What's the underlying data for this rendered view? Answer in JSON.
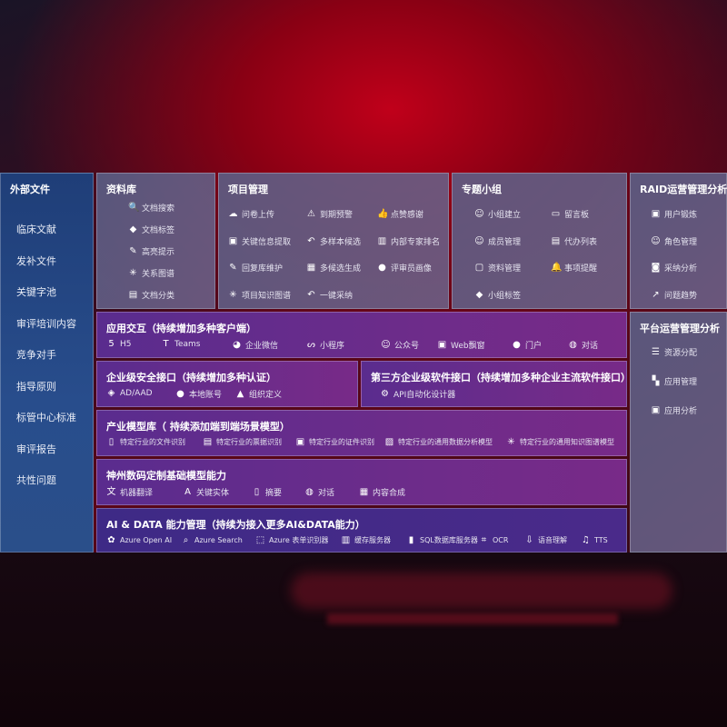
{
  "sidebar": {
    "title": "外部文件",
    "items": [
      "临床文献",
      "发补文件",
      "关键字池",
      "审评培训内容",
      "竞争对手",
      "指导原则",
      "标管中心标准",
      "审评报告",
      "共性问题"
    ]
  },
  "panels": {
    "library": {
      "title": "资料库",
      "items": [
        {
          "label": "文档搜索",
          "icon": "doc-search-icon"
        },
        {
          "label": "文档标签",
          "icon": "tag-icon"
        },
        {
          "label": "高亮提示",
          "icon": "pen-icon"
        },
        {
          "label": "关系图谱",
          "icon": "graph-icon"
        },
        {
          "label": "文档分类",
          "icon": "doc-list-icon"
        }
      ]
    },
    "project": {
      "title": "项目管理",
      "items": [
        {
          "label": "问卷上传",
          "icon": "cloud-upload-icon"
        },
        {
          "label": "到期预警",
          "icon": "alarm-icon"
        },
        {
          "label": "点赞感谢",
          "icon": "thumbs-up-icon"
        },
        {
          "label": "关键信息提取",
          "icon": "window-icon"
        },
        {
          "label": "多样本候选",
          "icon": "reply-icon"
        },
        {
          "label": "内部专家排名",
          "icon": "ranking-icon"
        },
        {
          "label": "回复库维护",
          "icon": "edit-icon"
        },
        {
          "label": "多候选生成",
          "icon": "puzzle-icon"
        },
        {
          "label": "评审员画像",
          "icon": "user-icon"
        },
        {
          "label": "项目知识图谱",
          "icon": "graph-icon"
        },
        {
          "label": "一键采纳",
          "icon": "reply-icon"
        }
      ]
    },
    "group": {
      "title": "专题小组",
      "items": [
        {
          "label": "小组建立",
          "icon": "users-icon"
        },
        {
          "label": "留言板",
          "icon": "bbs-icon"
        },
        {
          "label": "成员管理",
          "icon": "user-add-icon"
        },
        {
          "label": "代办列表",
          "icon": "clipboard-icon"
        },
        {
          "label": "资料管理",
          "icon": "folder-icon"
        },
        {
          "label": "事项提醒",
          "icon": "bell-icon"
        },
        {
          "label": "小组标签",
          "icon": "tag-icon"
        }
      ]
    },
    "raid": {
      "title": "RAID运营管理分析",
      "items": [
        {
          "label": "用户锻炼",
          "icon": "id-card-icon"
        },
        {
          "label": "角色管理",
          "icon": "users-icon"
        },
        {
          "label": "采纳分析",
          "icon": "qa-icon"
        },
        {
          "label": "问题趋势",
          "icon": "trend-icon"
        }
      ]
    },
    "platform": {
      "title": "平台运营管理分析",
      "items": [
        {
          "label": "资源分配",
          "icon": "list-icon"
        },
        {
          "label": "应用管理",
          "icon": "apps-icon"
        },
        {
          "label": "应用分析",
          "icon": "analysis-icon"
        }
      ]
    }
  },
  "rows": {
    "app": {
      "title": "应用交互（持续增加多种客户端）",
      "items": [
        {
          "label": "H5",
          "icon": "html5-icon"
        },
        {
          "label": "Teams",
          "icon": "teams-icon"
        },
        {
          "label": "企业微信",
          "icon": "wecom-icon"
        },
        {
          "label": "小程序",
          "icon": "miniprogram-icon"
        },
        {
          "label": "公众号",
          "icon": "users-icon"
        },
        {
          "label": "Web飘窗",
          "icon": "window-icon"
        },
        {
          "label": "门户",
          "icon": "portal-icon"
        },
        {
          "label": "对话",
          "icon": "chat-icon"
        }
      ]
    },
    "security": {
      "title": "企业级安全接口（持续增加多种认证）",
      "items": [
        {
          "label": "AD/AAD",
          "icon": "ad-icon"
        },
        {
          "label": "本地账号",
          "icon": "user-icon"
        },
        {
          "label": "组织定义",
          "icon": "org-icon"
        }
      ]
    },
    "thirdparty": {
      "title": "第三方企业级软件接口（持续增加多种企业主流软件接口）",
      "items": [
        {
          "label": "API自动化设计器",
          "icon": "gear-icon"
        }
      ]
    },
    "industry": {
      "title": "产业模型库（ 持续添加端到端场景模型）",
      "items": [
        {
          "label": "特定行业的文件识别",
          "icon": "doc-icon"
        },
        {
          "label": "特定行业的票据识别",
          "icon": "receipt-icon"
        },
        {
          "label": "特定行业的证件识别",
          "icon": "id-card-icon"
        },
        {
          "label": "特定行业的通用数据分析模型",
          "icon": "chart-icon"
        },
        {
          "label": "特定行业的通用知识图谱模型",
          "icon": "graph-icon"
        }
      ]
    },
    "base": {
      "title": "神州数码定制基础模型能力",
      "items": [
        {
          "label": "机器翻译",
          "icon": "translate-icon"
        },
        {
          "label": "关键实体",
          "icon": "entity-icon"
        },
        {
          "label": "摘要",
          "icon": "doc-icon"
        },
        {
          "label": "对话",
          "icon": "chat-icon"
        },
        {
          "label": "内容合成",
          "icon": "puzzle-icon"
        }
      ]
    },
    "ai": {
      "title": "AI & DATA 能力管理（持续为接入更多AI&DATA能力）",
      "items": [
        {
          "label": "Azure Open AI",
          "icon": "openai-icon"
        },
        {
          "label": "Azure Search",
          "icon": "search-icon"
        },
        {
          "label": "Azure 表单识别器",
          "icon": "form-icon"
        },
        {
          "label": "缓存服务器",
          "icon": "cache-icon"
        },
        {
          "label": "SQL数据库服务器",
          "icon": "database-icon"
        },
        {
          "label": "OCR",
          "icon": "ocr-icon"
        },
        {
          "label": "语音理解",
          "icon": "speech-icon"
        },
        {
          "label": "TTS",
          "icon": "tts-icon"
        }
      ]
    }
  }
}
